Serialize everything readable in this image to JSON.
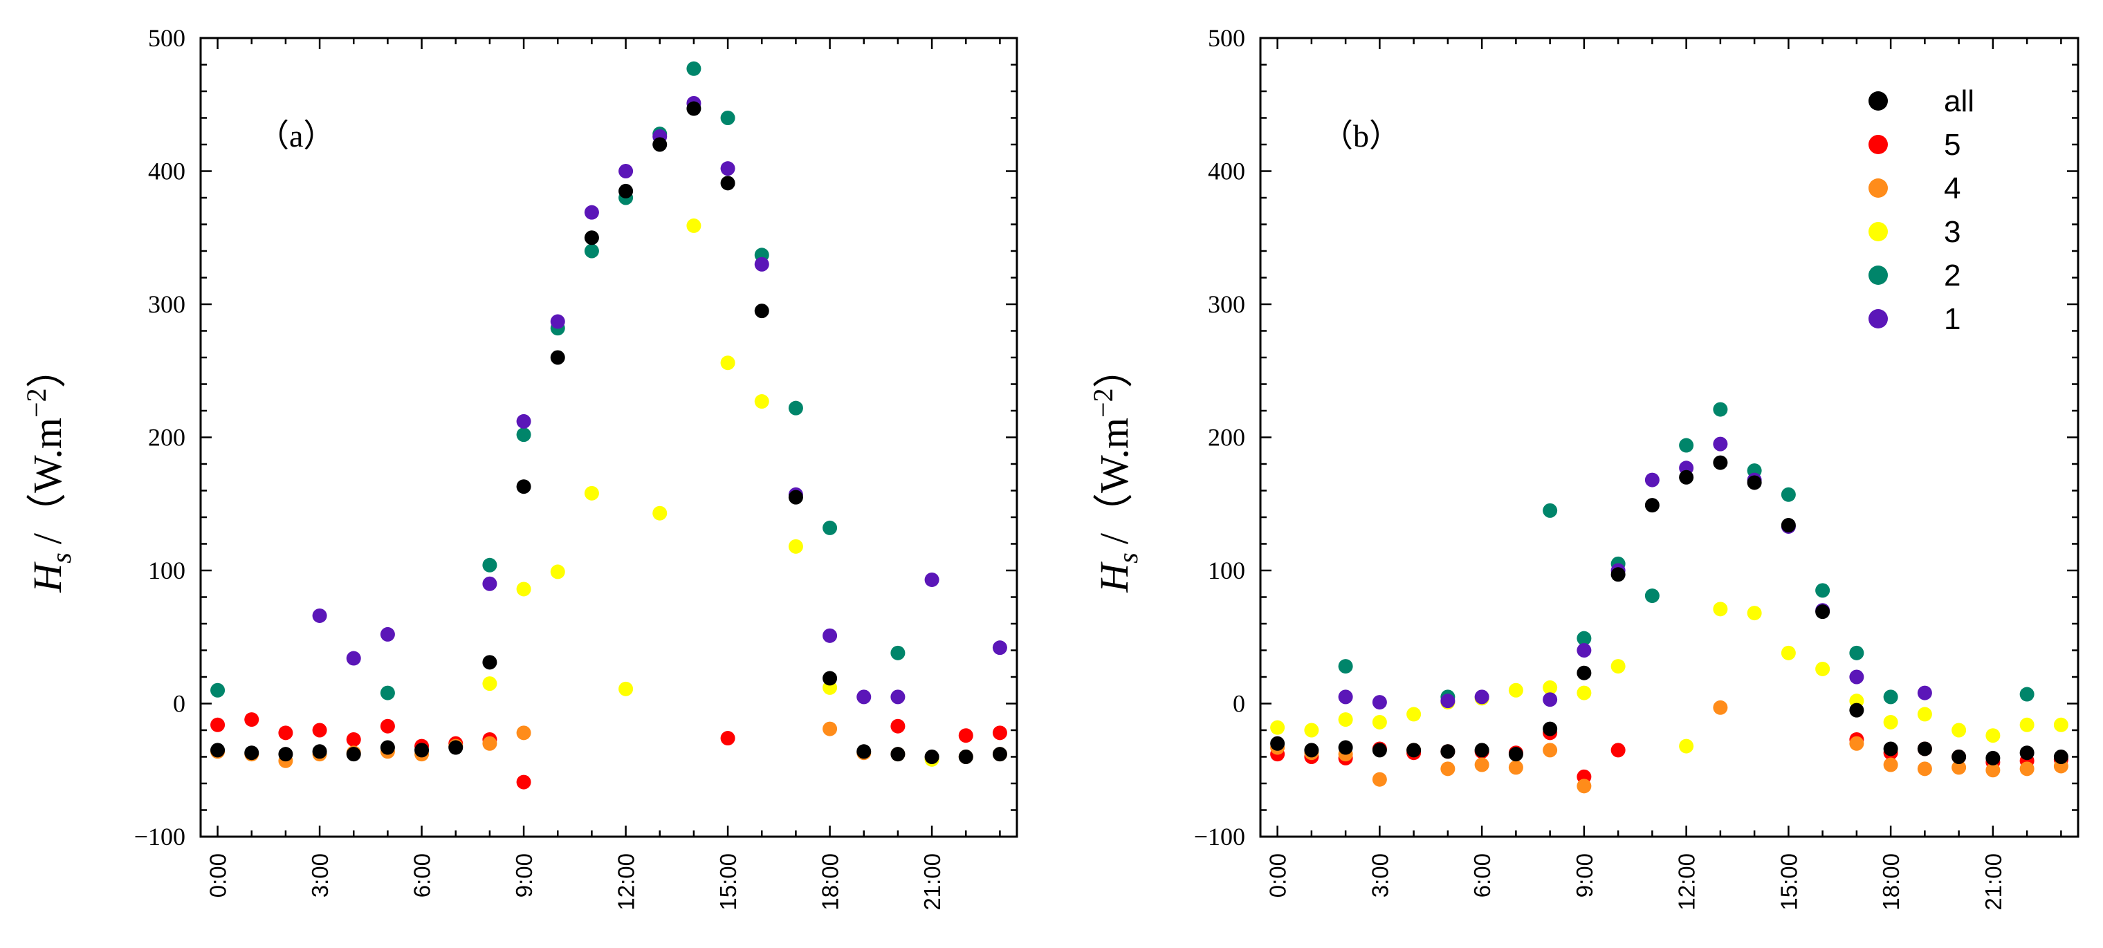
{
  "chart_data": [
    {
      "type": "scatter",
      "panel_label": "（a）",
      "ylabel": {
        "symbol": "H",
        "subscript": "s",
        "unit_text": "/（W.m",
        "superscript": "−2",
        "close": "）"
      },
      "ylim": [
        -100,
        500
      ],
      "yticks": [
        -100,
        0,
        100,
        200,
        300,
        400,
        500
      ],
      "ytick_labels": [
        "−100",
        "0",
        "100",
        "200",
        "300",
        "400",
        "500"
      ],
      "xlim": [
        -0.5,
        23.5
      ],
      "xticks": [
        0,
        3,
        6,
        9,
        12,
        15,
        18,
        21
      ],
      "xtick_labels": [
        "0:00",
        "3:00",
        "6:00",
        "9:00",
        "12:00",
        "15:00",
        "18:00",
        "21:00"
      ],
      "series": [
        {
          "name": "5",
          "color": "#ff0000",
          "x": [
            0,
            1,
            2,
            3,
            4,
            5,
            6,
            7,
            8,
            9,
            15,
            20,
            22,
            23
          ],
          "y": [
            -16,
            -12,
            -22,
            -20,
            -27,
            -17,
            -32,
            -30,
            -27,
            -59,
            -26,
            -17,
            -24,
            -22
          ]
        },
        {
          "name": "4",
          "color": "#ff8c1a",
          "x": [
            0,
            1,
            2,
            3,
            4,
            5,
            6,
            7,
            8,
            9,
            18,
            19,
            20,
            21,
            22,
            23
          ],
          "y": [
            -36,
            -38,
            -43,
            -38,
            -37,
            -36,
            -38,
            -32,
            -30,
            -22,
            -19,
            -37,
            -38,
            -41,
            -40,
            -38
          ]
        },
        {
          "name": "3",
          "color": "#ffff00",
          "x": [
            8,
            9,
            10,
            11,
            12,
            13,
            14,
            15,
            16,
            17,
            18,
            21
          ],
          "y": [
            15,
            86,
            99,
            158,
            11,
            143,
            359,
            256,
            227,
            118,
            12,
            -42
          ]
        },
        {
          "name": "2",
          "color": "#00856a",
          "x": [
            0,
            5,
            8,
            9,
            10,
            11,
            12,
            13,
            14,
            15,
            16,
            17,
            18,
            20
          ],
          "y": [
            10,
            8,
            104,
            202,
            282,
            340,
            380,
            428,
            477,
            440,
            337,
            222,
            132,
            38
          ]
        },
        {
          "name": "1",
          "color": "#5b16b8",
          "x": [
            3,
            4,
            5,
            8,
            9,
            10,
            11,
            12,
            13,
            14,
            15,
            16,
            17,
            18,
            19,
            20,
            21,
            23
          ],
          "y": [
            66,
            34,
            52,
            90,
            212,
            287,
            369,
            400,
            426,
            451,
            402,
            330,
            157,
            51,
            5,
            5,
            93,
            42
          ]
        },
        {
          "name": "all",
          "color": "#000000",
          "x": [
            0,
            1,
            2,
            3,
            4,
            5,
            6,
            7,
            8,
            9,
            10,
            11,
            12,
            13,
            14,
            15,
            16,
            17,
            18,
            19,
            20,
            21,
            22,
            23
          ],
          "y": [
            -35,
            -37,
            -38,
            -36,
            -38,
            -33,
            -35,
            -33,
            31,
            163,
            260,
            350,
            385,
            420,
            447,
            391,
            295,
            155,
            19,
            -36,
            -38,
            -40,
            -40,
            -38
          ]
        }
      ]
    },
    {
      "type": "scatter",
      "panel_label": "（b）",
      "ylabel": {
        "symbol": "H",
        "subscript": "s",
        "unit_text": "/（W.m",
        "superscript": "−2",
        "close": "）"
      },
      "ylim": [
        -100,
        500
      ],
      "yticks": [
        -100,
        0,
        100,
        200,
        300,
        400,
        500
      ],
      "ytick_labels": [
        "−100",
        "0",
        "100",
        "200",
        "300",
        "400",
        "500"
      ],
      "xlim": [
        -0.5,
        23.5
      ],
      "xticks": [
        0,
        3,
        6,
        9,
        12,
        15,
        18,
        21
      ],
      "xtick_labels": [
        "0:00",
        "3:00",
        "6:00",
        "9:00",
        "12:00",
        "15:00",
        "18:00",
        "21:00"
      ],
      "legend": {
        "location": "top-right",
        "entries": [
          "all",
          "5",
          "4",
          "3",
          "2",
          "1"
        ]
      },
      "series": [
        {
          "name": "5",
          "color": "#ff0000",
          "x": [
            0,
            1,
            2,
            3,
            4,
            5,
            6,
            7,
            8,
            9,
            10,
            17,
            18,
            19,
            20,
            21,
            22,
            23
          ],
          "y": [
            -38,
            -40,
            -41,
            -34,
            -37,
            -36,
            -36,
            -37,
            -22,
            -55,
            -35,
            -27,
            -37,
            -34,
            -40,
            -44,
            -43,
            -42
          ]
        },
        {
          "name": "4",
          "color": "#ff8c1a",
          "x": [
            0,
            1,
            2,
            3,
            4,
            5,
            6,
            7,
            8,
            9,
            13,
            17,
            18,
            19,
            20,
            21,
            22,
            23
          ],
          "y": [
            -33,
            -37,
            -38,
            -57,
            -35,
            -49,
            -46,
            -48,
            -35,
            -62,
            -3,
            -30,
            -46,
            -49,
            -48,
            -50,
            -49,
            -47
          ]
        },
        {
          "name": "3",
          "color": "#ffff00",
          "x": [
            0,
            1,
            2,
            3,
            4,
            5,
            6,
            7,
            8,
            9,
            10,
            12,
            13,
            14,
            15,
            16,
            17,
            18,
            19,
            20,
            21,
            22,
            23
          ],
          "y": [
            -18,
            -20,
            -12,
            -14,
            -8,
            1,
            4,
            10,
            12,
            8,
            28,
            -32,
            71,
            68,
            38,
            26,
            2,
            -14,
            -8,
            -20,
            -24,
            -16,
            -16
          ]
        },
        {
          "name": "2",
          "color": "#00856a",
          "x": [
            2,
            5,
            8,
            9,
            10,
            11,
            12,
            13,
            14,
            15,
            16,
            17,
            18,
            22
          ],
          "y": [
            28,
            5,
            145,
            49,
            105,
            81,
            194,
            221,
            175,
            157,
            85,
            38,
            5,
            7
          ]
        },
        {
          "name": "1",
          "color": "#5b16b8",
          "x": [
            2,
            3,
            5,
            6,
            8,
            9,
            10,
            11,
            12,
            13,
            14,
            15,
            16,
            17,
            19
          ],
          "y": [
            5,
            1,
            2,
            5,
            3,
            40,
            100,
            168,
            177,
            195,
            168,
            133,
            70,
            20,
            8
          ]
        },
        {
          "name": "all",
          "color": "#000000",
          "x": [
            0,
            1,
            2,
            3,
            4,
            5,
            6,
            7,
            8,
            9,
            10,
            11,
            12,
            13,
            14,
            15,
            16,
            17,
            18,
            19,
            20,
            21,
            22,
            23
          ],
          "y": [
            -30,
            -35,
            -33,
            -35,
            -35,
            -36,
            -35,
            -38,
            -19,
            23,
            97,
            149,
            170,
            181,
            166,
            134,
            69,
            -5,
            -34,
            -34,
            -40,
            -41,
            -37,
            -40
          ]
        }
      ]
    }
  ]
}
